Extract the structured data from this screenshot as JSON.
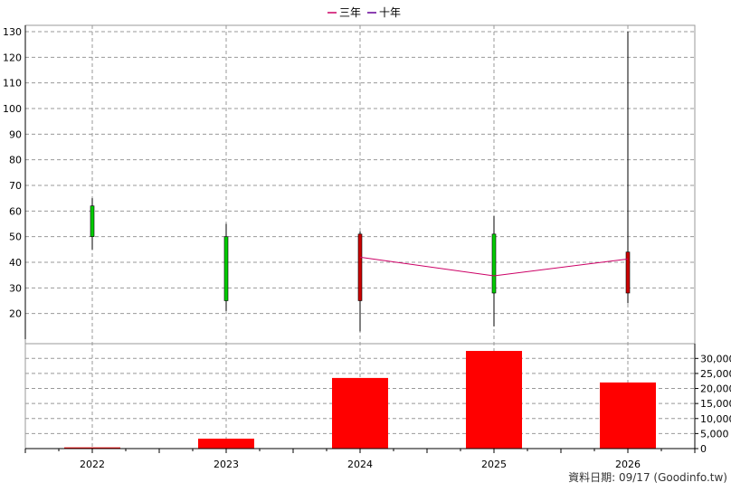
{
  "legend": [
    {
      "label": "三年",
      "color": "#cc0066"
    },
    {
      "label": "十年",
      "color": "#660099"
    }
  ],
  "footer": "資料日期: 09/17  (Goodinfo.tw)",
  "chart_data": {
    "type": "candlestick-with-volume",
    "categories": [
      "2022",
      "2023",
      "2024",
      "2025",
      "2026"
    ],
    "price_axis": {
      "min": 10,
      "max": 130,
      "ticks": [
        20,
        30,
        40,
        50,
        60,
        70,
        80,
        90,
        100,
        110,
        120,
        130
      ]
    },
    "volume_axis": {
      "min": 0,
      "max": 30000,
      "ticks": [
        0,
        5000,
        10000,
        15000,
        20000,
        25000,
        30000
      ],
      "tick_labels": [
        "0",
        "5,000",
        "10,000",
        "15,000",
        "20,000",
        "25,000",
        "30,000"
      ]
    },
    "candles": [
      {
        "x": "2022",
        "open": 50,
        "close": 62,
        "high": 65,
        "low": 45,
        "color": "#00cc00"
      },
      {
        "x": "2023",
        "open": 25,
        "close": 50,
        "high": 55,
        "low": 21,
        "color": "#00cc00"
      },
      {
        "x": "2024",
        "open": 51,
        "close": 25,
        "high": 52,
        "low": 13,
        "color": "#cc0000"
      },
      {
        "x": "2025",
        "open": 28,
        "close": 51,
        "high": 58,
        "low": 15,
        "color": "#00cc00"
      },
      {
        "x": "2026",
        "open": 44,
        "close": 28,
        "high": 130,
        "low": 24,
        "color": "#cc0000"
      }
    ],
    "three_year_ma": [
      null,
      null,
      42,
      34.7,
      41.3
    ],
    "volume": [
      400,
      3300,
      23500,
      32500,
      22000
    ],
    "grid": true
  }
}
